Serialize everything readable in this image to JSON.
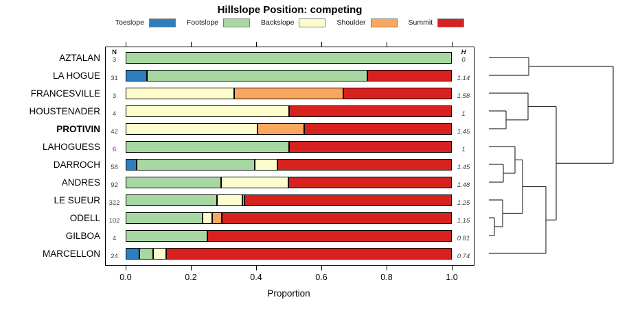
{
  "title": "Hillslope Position: competing",
  "x_axis": {
    "label": "Proportion",
    "tick_labels": [
      "0.0",
      "0.2",
      "0.4",
      "0.6",
      "0.8",
      "1.0"
    ]
  },
  "table_headers": {
    "n": "N",
    "h": "H"
  },
  "legend": [
    {
      "label": "Toeslope",
      "color": "#2E7EBD"
    },
    {
      "label": "Footslope",
      "color": "#A8D8A2"
    },
    {
      "label": "Backslope",
      "color": "#FCFCCC"
    },
    {
      "label": "Shoulder",
      "color": "#F9A75E"
    },
    {
      "label": "Summit",
      "color": "#D7211E"
    }
  ],
  "chart_data": {
    "type": "bar",
    "subtype": "stacked-horizontal-proportion",
    "title": "Hillslope Position: competing",
    "xlabel": "Proportion",
    "xlim": [
      0,
      1
    ],
    "xticks": [
      0,
      0.2,
      0.4,
      0.6,
      0.8,
      1.0
    ],
    "grid": false,
    "legend_position": "top",
    "categories": [
      "Toeslope",
      "Footslope",
      "Backslope",
      "Shoulder",
      "Summit"
    ],
    "colors": {
      "Toeslope": "#2E7EBD",
      "Footslope": "#A8D8A2",
      "Backslope": "#FCFCCC",
      "Shoulder": "#F9A75E",
      "Summit": "#D7211E"
    },
    "rows": [
      {
        "label": "AZTALAN",
        "n": "3",
        "h": "0",
        "bold": false,
        "segments": [
          {
            "cat": "Footslope",
            "value": 1.0
          }
        ]
      },
      {
        "label": "LA HOGUE",
        "n": "31",
        "h": "1.14",
        "bold": false,
        "segments": [
          {
            "cat": "Toeslope",
            "value": 0.0645
          },
          {
            "cat": "Footslope",
            "value": 0.6774
          },
          {
            "cat": "Summit",
            "value": 0.2581
          }
        ]
      },
      {
        "label": "FRANCESVILLE",
        "n": "3",
        "h": "1.58",
        "bold": false,
        "segments": [
          {
            "cat": "Backslope",
            "value": 0.3333
          },
          {
            "cat": "Shoulder",
            "value": 0.3333
          },
          {
            "cat": "Summit",
            "value": 0.3334
          }
        ]
      },
      {
        "label": "HOUSTENADER",
        "n": "4",
        "h": "1",
        "bold": false,
        "segments": [
          {
            "cat": "Backslope",
            "value": 0.5
          },
          {
            "cat": "Summit",
            "value": 0.5
          }
        ]
      },
      {
        "label": "PROTIVIN",
        "n": "42",
        "h": "1.45",
        "bold": true,
        "segments": [
          {
            "cat": "Backslope",
            "value": 0.4048
          },
          {
            "cat": "Shoulder",
            "value": 0.1429
          },
          {
            "cat": "Summit",
            "value": 0.4523
          }
        ]
      },
      {
        "label": "LAHOGUESS",
        "n": "6",
        "h": "1",
        "bold": false,
        "segments": [
          {
            "cat": "Footslope",
            "value": 0.5
          },
          {
            "cat": "Summit",
            "value": 0.5
          }
        ]
      },
      {
        "label": "DARROCH",
        "n": "58",
        "h": "1.45",
        "bold": false,
        "segments": [
          {
            "cat": "Toeslope",
            "value": 0.0345
          },
          {
            "cat": "Footslope",
            "value": 0.3621
          },
          {
            "cat": "Backslope",
            "value": 0.069
          },
          {
            "cat": "Summit",
            "value": 0.5344
          }
        ]
      },
      {
        "label": "ANDRES",
        "n": "92",
        "h": "1.48",
        "bold": false,
        "segments": [
          {
            "cat": "Footslope",
            "value": 0.2935
          },
          {
            "cat": "Backslope",
            "value": 0.2065
          },
          {
            "cat": "Summit",
            "value": 0.5
          }
        ]
      },
      {
        "label": "LE SUEUR",
        "n": "322",
        "h": "1.25",
        "bold": false,
        "segments": [
          {
            "cat": "Footslope",
            "value": 0.2795
          },
          {
            "cat": "Backslope",
            "value": 0.0776
          },
          {
            "cat": "Shoulder",
            "value": 0.0062
          },
          {
            "cat": "Summit",
            "value": 0.6367
          }
        ]
      },
      {
        "label": "ODELL",
        "n": "102",
        "h": "1.15",
        "bold": false,
        "segments": [
          {
            "cat": "Footslope",
            "value": 0.2353
          },
          {
            "cat": "Backslope",
            "value": 0.0294
          },
          {
            "cat": "Shoulder",
            "value": 0.0294
          },
          {
            "cat": "Summit",
            "value": 0.7059
          }
        ]
      },
      {
        "label": "GILBOA",
        "n": "4",
        "h": "0.81",
        "bold": false,
        "segments": [
          {
            "cat": "Footslope",
            "value": 0.25
          },
          {
            "cat": "Summit",
            "value": 0.75
          }
        ]
      },
      {
        "label": "MARCELLON",
        "n": "24",
        "h": "0.74",
        "bold": false,
        "segments": [
          {
            "cat": "Toeslope",
            "value": 0.0417
          },
          {
            "cat": "Footslope",
            "value": 0.0417
          },
          {
            "cat": "Backslope",
            "value": 0.0417
          },
          {
            "cat": "Summit",
            "value": 0.8749
          }
        ]
      }
    ],
    "dendrogram": {
      "leaf_x": 712,
      "merges": [
        {
          "id": "n1",
          "a": "L0",
          "b": "L1",
          "x": 770
        },
        {
          "id": "n2",
          "a": "L3",
          "b": "L4",
          "x": 737
        },
        {
          "id": "n3",
          "a": "L2",
          "b": "n2",
          "x": 769
        },
        {
          "id": "n4",
          "a": "L6",
          "b": "L7",
          "x": 733
        },
        {
          "id": "n5",
          "a": "L5",
          "b": "n4",
          "x": 750
        },
        {
          "id": "n6",
          "a": "L9",
          "b": "L10",
          "x": 720
        },
        {
          "id": "n7",
          "a": "L8",
          "b": "n6",
          "x": 732
        },
        {
          "id": "n8",
          "a": "n5",
          "b": "n7",
          "x": 761
        },
        {
          "id": "n9",
          "a": "n8",
          "b": "L11",
          "x": 795
        },
        {
          "id": "n10",
          "a": "n3",
          "b": "n9",
          "x": 810
        },
        {
          "id": "n11",
          "a": "n1",
          "b": "n10",
          "x": 893
        }
      ]
    }
  }
}
